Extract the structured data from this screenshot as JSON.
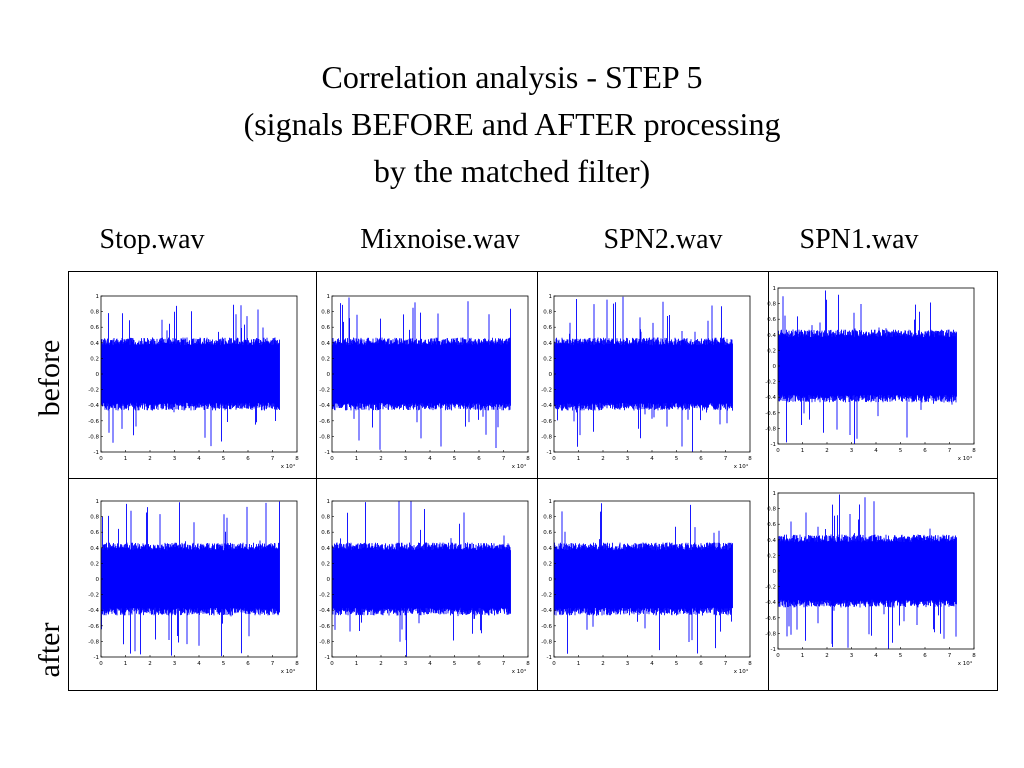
{
  "title_lines": [
    "Correlation analysis - STEP 5",
    "(signals BEFORE and AFTER processing",
    "by the matched filter)"
  ],
  "columns": [
    "Stop.wav",
    "Mixnoise.wav",
    "SPN2.wav",
    "SPN1.wav"
  ],
  "rows": [
    "before",
    "after"
  ],
  "chart_data": [
    {
      "type": "line",
      "row": "before",
      "column": "Stop.wav",
      "series_color": "#0000ff",
      "xlim": [
        0,
        8
      ],
      "ylim": [
        -1,
        1
      ],
      "x_ticks": [
        "0",
        "1",
        "2",
        "3",
        "4",
        "5",
        "6",
        "7",
        "8"
      ],
      "y_ticks": [
        "1",
        "0.8",
        "0.6",
        "0.4",
        "0.2",
        "0",
        "-0.2",
        "-0.4",
        "-0.6",
        "-0.8",
        "-1"
      ],
      "x_multiplier": "x 10⁴",
      "signal_extent_x": 7.3,
      "typical_amplitude": 0.45,
      "peak_amplitude": 1.0
    },
    {
      "type": "line",
      "row": "before",
      "column": "Mixnoise.wav",
      "series_color": "#0000ff",
      "xlim": [
        0,
        8
      ],
      "ylim": [
        -1,
        1
      ],
      "x_ticks": [
        "0",
        "1",
        "2",
        "3",
        "4",
        "5",
        "6",
        "7",
        "8"
      ],
      "y_ticks": [
        "1",
        "0.8",
        "0.6",
        "0.4",
        "0.2",
        "0",
        "-0.2",
        "-0.4",
        "-0.6",
        "-0.8",
        "-1"
      ],
      "x_multiplier": "x 10⁴",
      "signal_extent_x": 7.3,
      "typical_amplitude": 0.45,
      "peak_amplitude": 1.0
    },
    {
      "type": "line",
      "row": "before",
      "column": "SPN2.wav",
      "series_color": "#0000ff",
      "xlim": [
        0,
        8
      ],
      "ylim": [
        -1,
        1
      ],
      "x_ticks": [
        "0",
        "1",
        "2",
        "3",
        "4",
        "5",
        "6",
        "7",
        "8"
      ],
      "y_ticks": [
        "1",
        "0.8",
        "0.6",
        "0.4",
        "0.2",
        "0",
        "-0.2",
        "-0.4",
        "-0.6",
        "-0.8",
        "-1"
      ],
      "x_multiplier": "x 10⁴",
      "signal_extent_x": 7.3,
      "typical_amplitude": 0.45,
      "peak_amplitude": 1.0
    },
    {
      "type": "line",
      "row": "before",
      "column": "SPN1.wav",
      "series_color": "#0000ff",
      "xlim": [
        0,
        8
      ],
      "ylim": [
        -1,
        1
      ],
      "x_ticks": [
        "0",
        "1",
        "2",
        "3",
        "4",
        "5",
        "6",
        "7",
        "8"
      ],
      "y_ticks": [
        "1",
        "0.8",
        "0.6",
        "0.4",
        "0.2",
        "0",
        "-0.2",
        "-0.4",
        "-0.6",
        "-0.8",
        "-1"
      ],
      "x_multiplier": "x 10⁴",
      "signal_extent_x": 7.3,
      "typical_amplitude": 0.45,
      "peak_amplitude": 1.0
    },
    {
      "type": "line",
      "row": "after",
      "column": "Stop.wav",
      "series_color": "#0000ff",
      "xlim": [
        0,
        8
      ],
      "ylim": [
        -1,
        1
      ],
      "x_ticks": [
        "0",
        "1",
        "2",
        "3",
        "4",
        "5",
        "6",
        "7",
        "8"
      ],
      "y_ticks": [
        "1",
        "0.8",
        "0.6",
        "0.4",
        "0.2",
        "0",
        "-0.2",
        "-0.4",
        "-0.6",
        "-0.8",
        "-1"
      ],
      "x_multiplier": "x 10⁴",
      "signal_extent_x": 7.3,
      "typical_amplitude": 0.45,
      "peak_amplitude": 1.0
    },
    {
      "type": "line",
      "row": "after",
      "column": "Mixnoise.wav",
      "series_color": "#0000ff",
      "xlim": [
        0,
        8
      ],
      "ylim": [
        -1,
        1
      ],
      "x_ticks": [
        "0",
        "1",
        "2",
        "3",
        "4",
        "5",
        "6",
        "7",
        "8"
      ],
      "y_ticks": [
        "1",
        "0.8",
        "0.6",
        "0.4",
        "0.2",
        "0",
        "-0.2",
        "-0.4",
        "-0.6",
        "-0.8",
        "-1"
      ],
      "x_multiplier": "x 10⁴",
      "signal_extent_x": 7.3,
      "typical_amplitude": 0.45,
      "peak_amplitude": 1.0
    },
    {
      "type": "line",
      "row": "after",
      "column": "SPN2.wav",
      "series_color": "#0000ff",
      "xlim": [
        0,
        8
      ],
      "ylim": [
        -1,
        1
      ],
      "x_ticks": [
        "0",
        "1",
        "2",
        "3",
        "4",
        "5",
        "6",
        "7",
        "8"
      ],
      "y_ticks": [
        "1",
        "0.8",
        "0.6",
        "0.4",
        "0.2",
        "0",
        "-0.2",
        "-0.4",
        "-0.6",
        "-0.8",
        "-1"
      ],
      "x_multiplier": "x 10⁴",
      "signal_extent_x": 7.3,
      "typical_amplitude": 0.45,
      "peak_amplitude": 1.0
    },
    {
      "type": "line",
      "row": "after",
      "column": "SPN1.wav",
      "series_color": "#0000ff",
      "xlim": [
        0,
        8
      ],
      "ylim": [
        -1,
        1
      ],
      "x_ticks": [
        "0",
        "1",
        "2",
        "3",
        "4",
        "5",
        "6",
        "7",
        "8"
      ],
      "y_ticks": [
        "1",
        "0.8",
        "0.6",
        "0.4",
        "0.2",
        "0",
        "-0.2",
        "-0.4",
        "-0.6",
        "-0.8",
        "-1"
      ],
      "x_multiplier": "x 10⁴",
      "signal_extent_x": 7.3,
      "typical_amplitude": 0.45,
      "peak_amplitude": 1.0
    }
  ]
}
